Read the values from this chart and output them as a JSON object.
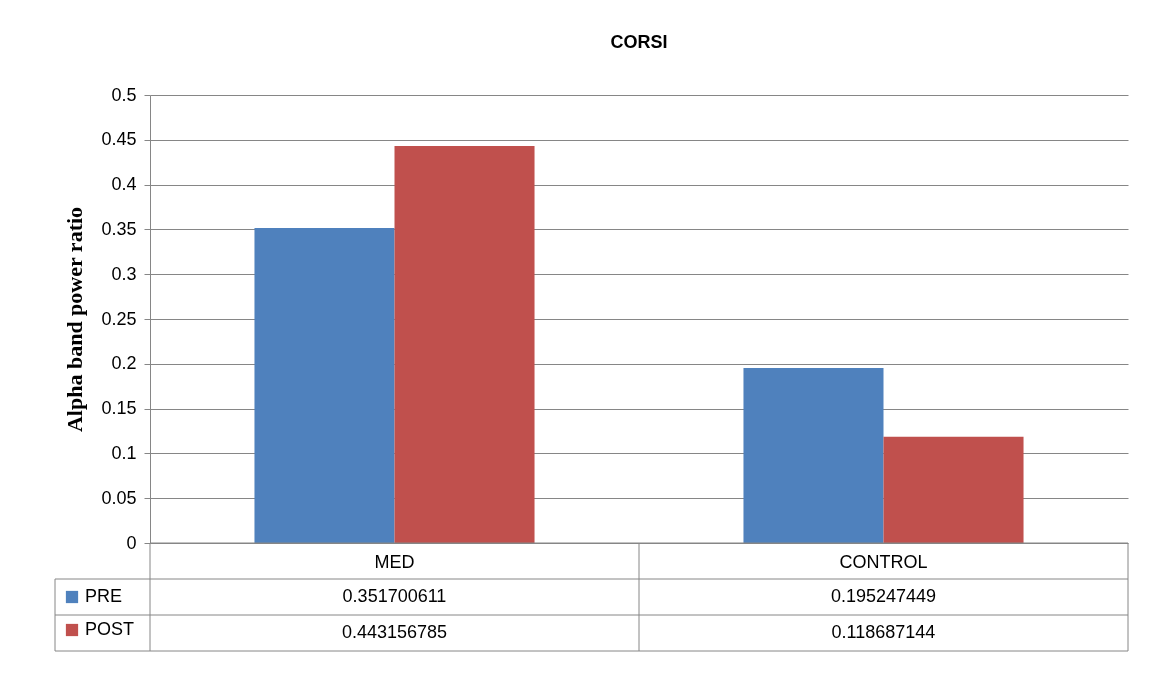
{
  "chart_data": {
    "type": "bar",
    "title": "CORSI",
    "ylabel": "Alpha band power ratio",
    "categories": [
      "MED",
      "CONTROL"
    ],
    "series": [
      {
        "name": "PRE",
        "color": "#4f81bd",
        "values": [
          0.351700611,
          0.195247449
        ]
      },
      {
        "name": "POST",
        "color": "#c0504d",
        "values": [
          0.443156785,
          0.118687144
        ]
      }
    ],
    "ylim": [
      0,
      0.5
    ],
    "yticks": [
      0,
      0.05,
      0.1,
      0.15,
      0.2,
      0.25,
      0.3,
      0.35,
      0.4,
      0.45,
      0.5
    ],
    "grid": "y",
    "legend": "bottom left",
    "data_labels": true
  }
}
